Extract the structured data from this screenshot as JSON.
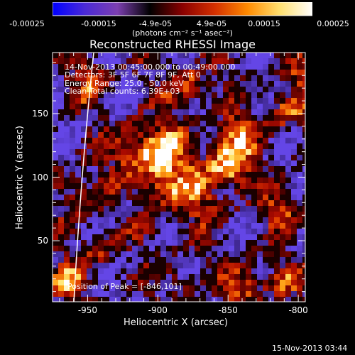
{
  "colorbar": {
    "stops": [
      "#0000ff",
      "#4b2ad6",
      "#7c3fb0",
      "#000000",
      "#8a0000",
      "#d43000",
      "#ff8a00",
      "#ffe070",
      "#ffffff"
    ],
    "tick_labels": [
      "-0.00025",
      "-0.00015",
      "-4.9e-05",
      "4.9e-05",
      "0.00015",
      "0.00025"
    ],
    "unit_label": "(photons cm⁻² s⁻¹ asec⁻²)"
  },
  "image": {
    "title": "Reconstructed RHESSI Image",
    "time_range": "14-Nov-2013 00:45:00.000 to 00:49:00.000",
    "detectors": "Detectors: 3F 5F 6F 7F 8F 9F, Att 0",
    "energy": "Energy Range: 25.0 - 50.0 keV",
    "clean": "Clean    Total counts: 6.39E+03",
    "peak": "Position of Peak = [-846,101]",
    "xlabel": "Heliocentric X (arcsec)",
    "ylabel": "Heliocentric Y (arcsec)",
    "x_ticks": [
      "-950",
      "-900",
      "-850",
      "-800"
    ],
    "y_ticks": [
      "50",
      "100",
      "150"
    ],
    "xlim": [
      -975,
      -795
    ],
    "ylim": [
      2,
      198
    ],
    "colors": {
      "background": "#000000",
      "positive": "#ff3c00",
      "negative": "#6a3cd6",
      "limb": "#ffffff"
    }
  },
  "footer": {
    "timestamp": "15-Nov-2013 03:44"
  }
}
